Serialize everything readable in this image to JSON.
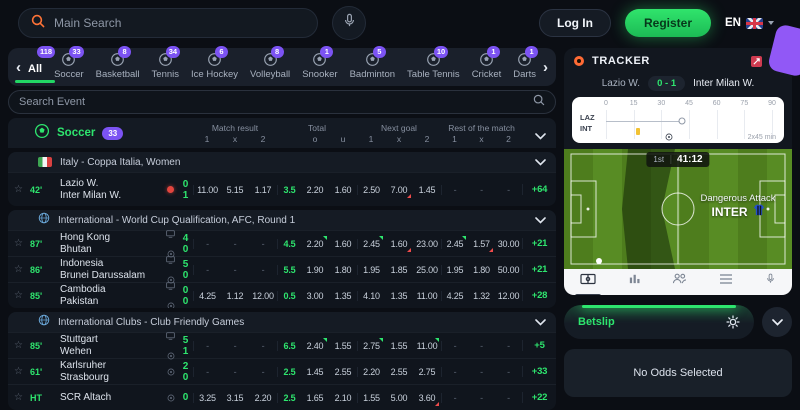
{
  "header": {
    "search_placeholder": "Main Search",
    "login_label": "Log In",
    "register_label": "Register",
    "language": "EN"
  },
  "sports_tabs": [
    {
      "label": "All",
      "count": "118",
      "active": true,
      "icon": "none"
    },
    {
      "label": "Soccer",
      "count": "33",
      "icon": "soccer"
    },
    {
      "label": "Basketball",
      "count": "8",
      "icon": "basketball"
    },
    {
      "label": "Tennis",
      "count": "34",
      "icon": "tennis"
    },
    {
      "label": "Ice Hockey",
      "count": "6",
      "icon": "ice-hockey"
    },
    {
      "label": "Volleyball",
      "count": "8",
      "icon": "volleyball"
    },
    {
      "label": "Snooker",
      "count": "1",
      "icon": "snooker"
    },
    {
      "label": "Badminton",
      "count": "5",
      "icon": "badminton"
    },
    {
      "label": "Table Tennis",
      "count": "10",
      "icon": "table-tennis"
    },
    {
      "label": "Cricket",
      "count": "1",
      "icon": "cricket"
    },
    {
      "label": "Darts",
      "count": "1",
      "icon": "darts"
    }
  ],
  "events": {
    "search_placeholder": "Search Event"
  },
  "market_header": {
    "sport": "Soccer",
    "count": "33",
    "groups": [
      {
        "label": "Match result",
        "cols": [
          "1",
          "x",
          "2"
        ]
      },
      {
        "label": "Total",
        "cols": [
          "o",
          "u"
        ]
      },
      {
        "label": "Next goal",
        "cols": [
          "1",
          "x",
          "2"
        ]
      },
      {
        "label": "Rest of the match",
        "cols": [
          "1",
          "x",
          "2"
        ]
      }
    ]
  },
  "leagues": [
    {
      "name": "Italy - Coppa Italia, Women",
      "flag": "italy",
      "matches": [
        {
          "time": "42'",
          "home": "Lazio W.",
          "away": "Inter Milan W.",
          "score_home": "0",
          "score_away": "1",
          "indicators": [
            "live"
          ],
          "tall": true,
          "odds": {
            "mr": [
              "11.00",
              "5.15",
              "1.17"
            ],
            "line": "3.5",
            "ou": [
              "2.20",
              "1.60"
            ],
            "ng": [
              "2.50",
              "7.00",
              "1.45"
            ],
            "rest": [
              "-",
              "-",
              "-"
            ],
            "more": "+64"
          },
          "trends": {
            "ng1": "down"
          }
        }
      ]
    },
    {
      "name": "International - World Cup Qualification, AFC, Round 1",
      "flag": "globe",
      "matches": [
        {
          "time": "87'",
          "home": "Hong Kong",
          "away": "Bhutan",
          "score_home": "4",
          "score_away": "0",
          "indicators": [
            "tv",
            "ball"
          ],
          "odds": {
            "mr": [
              "-",
              "-",
              "-"
            ],
            "line": "4.5",
            "ou": [
              "2.20",
              "1.60"
            ],
            "ng": [
              "2.45",
              "1.60",
              "23.00"
            ],
            "rest": [
              "2.45",
              "1.57",
              "30.00"
            ],
            "more": "+21"
          },
          "trends": {
            "o": "up",
            "ng0": "up",
            "ng1": "down",
            "r0": "up",
            "r1": "down"
          }
        },
        {
          "time": "86'",
          "home": "Indonesia",
          "away": "Brunei Darussalam",
          "score_home": "5",
          "score_away": "0",
          "indicators": [
            "tv",
            "ball"
          ],
          "odds": {
            "mr": [
              "-",
              "-",
              "-"
            ],
            "line": "5.5",
            "ou": [
              "1.90",
              "1.80"
            ],
            "ng": [
              "1.95",
              "1.85",
              "25.00"
            ],
            "rest": [
              "1.95",
              "1.80",
              "50.00"
            ],
            "more": "+21"
          },
          "trends": {}
        },
        {
          "time": "85'",
          "home": "Cambodia",
          "away": "Pakistan",
          "score_home": "0",
          "score_away": "0",
          "indicators": [
            "tv",
            "ball"
          ],
          "odds": {
            "mr": [
              "4.25",
              "1.12",
              "12.00"
            ],
            "line": "0.5",
            "ou": [
              "3.00",
              "1.35"
            ],
            "ng": [
              "4.10",
              "1.35",
              "11.00"
            ],
            "rest": [
              "4.25",
              "1.32",
              "12.00"
            ],
            "more": "+28"
          },
          "trends": {}
        }
      ]
    },
    {
      "name": "International Clubs - Club Friendly Games",
      "flag": "globe",
      "matches": [
        {
          "time": "85'",
          "home": "Stuttgart",
          "away": "Wehen",
          "score_home": "5",
          "score_away": "1",
          "indicators": [
            "tv",
            "ball"
          ],
          "odds": {
            "mr": [
              "-",
              "-",
              "-"
            ],
            "line": "6.5",
            "ou": [
              "2.40",
              "1.55"
            ],
            "ng": [
              "2.75",
              "1.55",
              "11.00"
            ],
            "rest": [
              "-",
              "-",
              "-"
            ],
            "more": "+5"
          },
          "trends": {
            "o": "up",
            "ng0": "up",
            "ng2": "up"
          }
        },
        {
          "time": "61'",
          "home": "Karlsruher",
          "away": "Strasbourg",
          "score_home": "2",
          "score_away": "0",
          "indicators": [
            "ball"
          ],
          "odds": {
            "mr": [
              "-",
              "-",
              "-"
            ],
            "line": "2.5",
            "ou": [
              "1.45",
              "2.55"
            ],
            "ng": [
              "2.20",
              "2.55",
              "2.75"
            ],
            "rest": [
              "-",
              "-",
              "-"
            ],
            "more": "+33"
          },
          "trends": {}
        },
        {
          "time": "HT",
          "home": "SCR Altach",
          "away": "",
          "score_home": "0",
          "score_away": "",
          "indicators": [
            "ball"
          ],
          "odds": {
            "mr": [
              "3.25",
              "3.15",
              "2.20"
            ],
            "line": "2.5",
            "ou": [
              "1.65",
              "2.10"
            ],
            "ng": [
              "1.55",
              "5.00",
              "3.60"
            ],
            "rest": [
              "-",
              "-",
              "-"
            ],
            "more": "+22"
          },
          "trends": {
            "ng2": "down"
          }
        }
      ]
    }
  ],
  "tracker": {
    "title": "TRACKER",
    "home": "Lazio W.",
    "away": "Inter Milan W.",
    "score": "0 - 1",
    "timeline": {
      "ticks": [
        "0",
        "15",
        "30",
        "45",
        "60",
        "75",
        "90"
      ],
      "rows": [
        "LAZ",
        "INT"
      ],
      "duration_label": "2x45 min",
      "progress_pct": 46,
      "card_pct": 19,
      "goal_pct": 38
    },
    "pitch": {
      "period": "1st",
      "clock": "41:12",
      "event_line1": "Dangerous Attack",
      "event_line2": "INTER"
    },
    "tabs": [
      "pitch",
      "stats",
      "lineups",
      "markets",
      "commentary"
    ]
  },
  "betslip": {
    "label": "Betslip",
    "empty_text": "No Odds Selected"
  },
  "colors": {
    "accent_green": "#2ee56e",
    "badge_purple": "#7c53f3",
    "live_red": "#e2453e",
    "search_orange": "#ff7337"
  }
}
